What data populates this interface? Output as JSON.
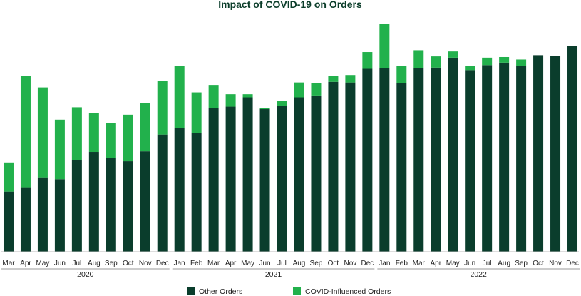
{
  "chart_data": {
    "type": "bar",
    "stacked": true,
    "title": "Impact of COVID-19 on Orders",
    "xlabel": "",
    "ylabel": "",
    "ylim": [
      0,
      360
    ],
    "categories": [
      "Mar",
      "Apr",
      "May",
      "Jun",
      "Jul",
      "Aug",
      "Sep",
      "Oct",
      "Nov",
      "Dec",
      "Jan",
      "Feb",
      "Mar",
      "Apr",
      "May",
      "Jun",
      "Jul",
      "Aug",
      "Sep",
      "Oct",
      "Nov",
      "Dec",
      "Jan",
      "Feb",
      "Mar",
      "Apr",
      "May",
      "Jun",
      "Jul",
      "Aug",
      "Sep",
      "Oct",
      "Nov",
      "Dec"
    ],
    "year_groups": [
      {
        "label": "2020",
        "start": 0,
        "end": 9
      },
      {
        "label": "2021",
        "start": 10,
        "end": 21
      },
      {
        "label": "2022",
        "start": 22,
        "end": 33
      }
    ],
    "series": [
      {
        "name": "Other Orders",
        "color": "#0a3d2c",
        "values": [
          97,
          104,
          120,
          117,
          148,
          161,
          151,
          146,
          162,
          189,
          199,
          192,
          232,
          234,
          249,
          230,
          235,
          249,
          252,
          274,
          273,
          295,
          296,
          272,
          296,
          297,
          313,
          293,
          301,
          305,
          300,
          317,
          316,
          332
        ]
      },
      {
        "name": "COVID-Influenced Orders",
        "color": "#22b14c",
        "values": [
          47,
          180,
          145,
          96,
          85,
          63,
          57,
          75,
          78,
          87,
          101,
          65,
          37,
          20,
          5,
          2,
          8,
          24,
          20,
          10,
          12,
          27,
          72,
          28,
          29,
          18,
          10,
          7,
          12,
          9,
          10,
          0,
          0,
          0
        ]
      }
    ],
    "legend_position": "bottom-center"
  }
}
